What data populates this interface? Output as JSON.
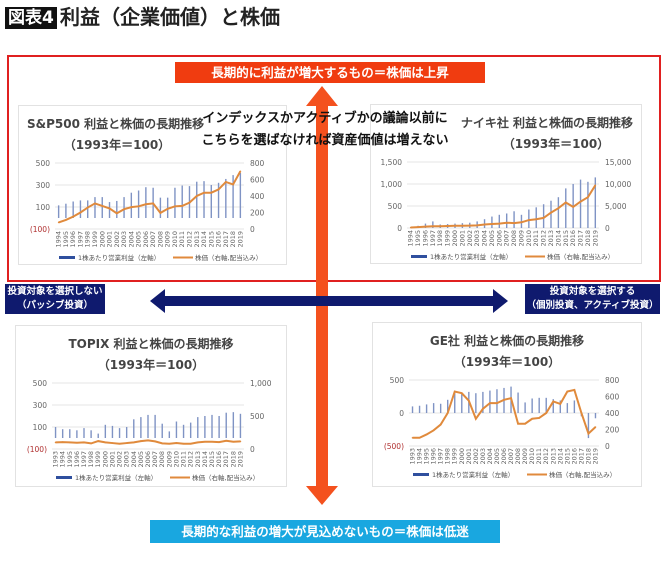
{
  "header": {
    "badge": "図表4",
    "title": "利益（企業価値）と株価"
  },
  "top_banner": "長期的に利益が増大するもの＝株価は上昇",
  "bottom_banner": "長期的な利益の増大が見込めないもの＝株価は低迷",
  "overlay": {
    "line1": "インデックスかアクティブかの議論以前に",
    "line2": "こちらを選ばなければ資産価値は増えない"
  },
  "left_box": {
    "line1": "投資対象を選択しない",
    "line2": "（パッシブ投資）"
  },
  "right_box": {
    "line1": "投資対象を選択する",
    "line2": "（個別投資、アクティブ投資）"
  },
  "colors": {
    "bar": "#4a64a8",
    "line": "#e08a3c",
    "frame": "#e02020",
    "arrow": "#f4511e",
    "navy": "#0f1a6e",
    "cyan": "#19a7e0"
  },
  "chart_data": [
    {
      "type": "bar+line",
      "title": "S&P500 利益と株価の長期推移",
      "subtitle": "（1993年＝100）",
      "x": [
        "1994",
        "1995",
        "1996",
        "1997",
        "1998",
        "1999",
        "2000",
        "2001",
        "2002",
        "2003",
        "2004",
        "2005",
        "2006",
        "2007",
        "2008",
        "2009",
        "2010",
        "2011",
        "2012",
        "2013",
        "2014",
        "2015",
        "2016",
        "2017",
        "2018",
        "2019"
      ],
      "left_axis": {
        "range": [
          -100,
          500
        ],
        "ticks": [
          "500",
          "300",
          "100",
          "(100)"
        ],
        "tick_values": [
          500,
          300,
          100,
          -100
        ]
      },
      "right_axis": {
        "range": [
          0,
          800
        ],
        "ticks": [
          "800",
          "600",
          "400",
          "200",
          "0"
        ],
        "tick_values": [
          800,
          600,
          400,
          200,
          0
        ]
      },
      "series": [
        {
          "name": "1株あたり営業利益（左軸）",
          "type": "bar",
          "values": [
            115,
            130,
            150,
            160,
            160,
            190,
            190,
            145,
            155,
            190,
            230,
            250,
            280,
            275,
            185,
            185,
            275,
            295,
            290,
            330,
            335,
            300,
            320,
            355,
            390,
            410
          ]
        },
        {
          "name": "株価（右軸,配当込み）",
          "type": "line",
          "values": [
            80,
            110,
            150,
            200,
            260,
            310,
            280,
            250,
            190,
            240,
            265,
            275,
            300,
            310,
            195,
            245,
            275,
            280,
            320,
            400,
            440,
            440,
            480,
            570,
            540,
            700
          ]
        }
      ]
    },
    {
      "type": "bar+line",
      "title": "ナイキ社 利益と株価の長期推移",
      "subtitle": "（1993年＝100）",
      "x": [
        "1994",
        "1995",
        "1996",
        "1997",
        "1998",
        "1999",
        "2000",
        "2001",
        "2002",
        "2003",
        "2004",
        "2005",
        "2006",
        "2007",
        "2008",
        "2009",
        "2010",
        "2011",
        "2012",
        "2013",
        "2014",
        "2015",
        "2016",
        "2017",
        "2018",
        "2019"
      ],
      "left_axis": {
        "range": [
          0,
          1500
        ],
        "ticks": [
          "1,500",
          "1,000",
          "500",
          "0"
        ],
        "tick_values": [
          1500,
          1000,
          500,
          0
        ]
      },
      "right_axis": {
        "range": [
          0,
          15000
        ],
        "ticks": [
          "15,000",
          "10,000",
          "5,000",
          "0"
        ],
        "tick_values": [
          15000,
          10000,
          5000,
          0
        ]
      },
      "series": [
        {
          "name": "1株あたり営業利益（左軸）",
          "type": "bar",
          "values": [
            20,
            50,
            100,
            150,
            80,
            90,
            100,
            110,
            120,
            150,
            200,
            260,
            300,
            330,
            380,
            300,
            420,
            470,
            540,
            620,
            700,
            900,
            1000,
            1100,
            1050,
            1150
          ]
        },
        {
          "name": "株価（右軸,配当込み）",
          "type": "line",
          "values": [
            100,
            200,
            300,
            400,
            400,
            450,
            500,
            500,
            550,
            600,
            800,
            900,
            1000,
            1200,
            1100,
            1300,
            1800,
            2000,
            2300,
            3500,
            4500,
            5800,
            4800,
            6000,
            7000,
            9700
          ]
        }
      ]
    },
    {
      "type": "bar+line",
      "title": "TOPIX 利益と株価の長期推移",
      "subtitle": "（1993年＝100）",
      "x": [
        "1993",
        "1994",
        "1995",
        "1996",
        "1997",
        "1998",
        "1999",
        "2000",
        "2001",
        "2002",
        "2003",
        "2004",
        "2005",
        "2006",
        "2007",
        "2008",
        "2009",
        "2010",
        "2011",
        "2012",
        "2013",
        "2014",
        "2015",
        "2016",
        "2017",
        "2018",
        "2019"
      ],
      "left_axis": {
        "range": [
          -100,
          500
        ],
        "ticks": [
          "500",
          "300",
          "100",
          "(100)"
        ],
        "tick_values": [
          500,
          300,
          100,
          -100
        ]
      },
      "right_axis": {
        "range": [
          0,
          1000
        ],
        "ticks": [
          "1,000",
          "500",
          "0"
        ],
        "tick_values": [
          1000,
          500,
          0
        ]
      },
      "series": [
        {
          "name": "1株あたり営業利益（左軸）",
          "type": "bar",
          "values": [
            100,
            80,
            80,
            70,
            90,
            70,
            40,
            120,
            110,
            90,
            100,
            170,
            190,
            210,
            210,
            130,
            60,
            150,
            120,
            140,
            190,
            200,
            210,
            200,
            230,
            235,
            220
          ]
        },
        {
          "name": "株価（右軸,配当込み）",
          "type": "line",
          "values": [
            100,
            105,
            100,
            95,
            100,
            85,
            120,
            100,
            90,
            80,
            90,
            100,
            120,
            130,
            115,
            85,
            80,
            90,
            80,
            80,
            100,
            110,
            110,
            105,
            125,
            110,
            115
          ]
        }
      ]
    },
    {
      "type": "bar+line",
      "title": "GE社 利益と株価の長期推移",
      "subtitle": "（1993年＝100）",
      "x": [
        "1993",
        "1994",
        "1995",
        "1996",
        "1997",
        "1998",
        "1999",
        "2000",
        "2001",
        "2002",
        "2003",
        "2004",
        "2005",
        "2006",
        "2007",
        "2008",
        "2009",
        "2010",
        "2011",
        "2012",
        "2013",
        "2014",
        "2015",
        "2016",
        "2017",
        "2018",
        "2019"
      ],
      "left_axis": {
        "range": [
          -500,
          500
        ],
        "ticks": [
          "500",
          "0",
          "(500)"
        ],
        "tick_values": [
          500,
          0,
          -500
        ]
      },
      "right_axis": {
        "range": [
          0,
          800
        ],
        "ticks": [
          "800",
          "600",
          "400",
          "200",
          "0"
        ],
        "tick_values": [
          800,
          600,
          400,
          200,
          0
        ]
      },
      "series": [
        {
          "name": "1株あたり営業利益（左軸）",
          "type": "bar",
          "values": [
            100,
            110,
            130,
            150,
            140,
            200,
            300,
            310,
            320,
            300,
            320,
            340,
            360,
            380,
            400,
            310,
            160,
            220,
            230,
            230,
            210,
            190,
            150,
            190,
            -50,
            -380,
            -80
          ]
        },
        {
          "name": "株価（右軸,配当込み）",
          "type": "line",
          "values": [
            100,
            100,
            140,
            190,
            260,
            400,
            660,
            640,
            550,
            330,
            450,
            520,
            520,
            560,
            580,
            270,
            270,
            330,
            340,
            400,
            540,
            510,
            660,
            680,
            400,
            150,
            230
          ]
        }
      ]
    }
  ]
}
